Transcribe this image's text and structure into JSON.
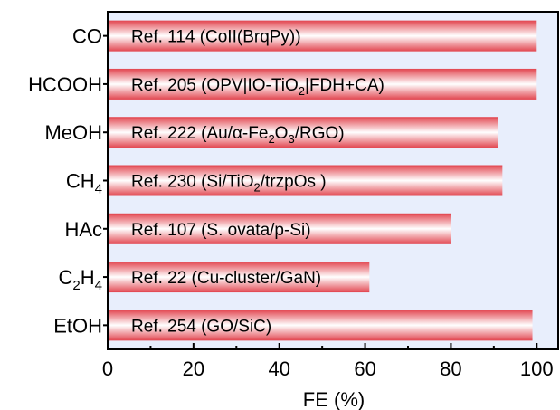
{
  "colors": {
    "plot_background": "#e8eefc",
    "bar_edge": "#e2454f",
    "bar_center": "#ffffff",
    "axis": "#000000"
  },
  "chart_data": {
    "type": "bar",
    "orientation": "horizontal",
    "xlabel": "FE (%)",
    "ylabel": "",
    "xlim": [
      0,
      105
    ],
    "xticks": [
      0,
      20,
      40,
      60,
      80,
      100
    ],
    "grid": false,
    "categories": [
      {
        "main": "CO",
        "sub": ""
      },
      {
        "main": "HCOOH",
        "sub": ""
      },
      {
        "main": "MeOH",
        "sub": ""
      },
      {
        "main": "CH",
        "sub": "4"
      },
      {
        "main": "HAc",
        "sub": ""
      },
      {
        "main": "C",
        "sub": "2",
        "main2": "H",
        "sub2": "4"
      },
      {
        "main": "EtOH",
        "sub": ""
      }
    ],
    "category_text": [
      "CO",
      "HCOOH",
      "MeOH",
      "CH4",
      "HAc",
      "C2H4",
      "EtOH"
    ],
    "values": [
      100,
      100,
      91,
      92,
      80,
      61,
      99
    ],
    "bar_labels": [
      "Ref. 114 (CoII(BrqPy))",
      "Ref. 205 (OPV|IO-TiO2|FDH+CA)",
      "Ref. 222 (Au/α-Fe2O3/RGO)",
      "Ref. 230 (Si/TiO2/trzpOs )",
      "Ref. 107 (S. ovata/p-Si)",
      "Ref. 22 (Cu-cluster/GaN)",
      "Ref. 254 (GO/SiC)"
    ],
    "bar_label_parts": [
      [
        {
          "t": "Ref. 114 (CoII(BrqPy))"
        }
      ],
      [
        {
          "t": "Ref. 205 (OPV|IO-TiO"
        },
        {
          "t": "2",
          "sub": true
        },
        {
          "t": "|FDH+CA)"
        }
      ],
      [
        {
          "t": "Ref. 222 (Au/α-Fe"
        },
        {
          "t": "2",
          "sub": true
        },
        {
          "t": "O"
        },
        {
          "t": "3",
          "sub": true
        },
        {
          "t": "/RGO)"
        }
      ],
      [
        {
          "t": "Ref. 230 (Si/TiO"
        },
        {
          "t": "2",
          "sub": true
        },
        {
          "t": "/trzpOs )"
        }
      ],
      [
        {
          "t": "Ref. 107 (S. ovata/p-Si)"
        }
      ],
      [
        {
          "t": "Ref. 22 (Cu-cluster/GaN)"
        }
      ],
      [
        {
          "t": "Ref. 254 (GO/SiC)"
        }
      ]
    ]
  }
}
